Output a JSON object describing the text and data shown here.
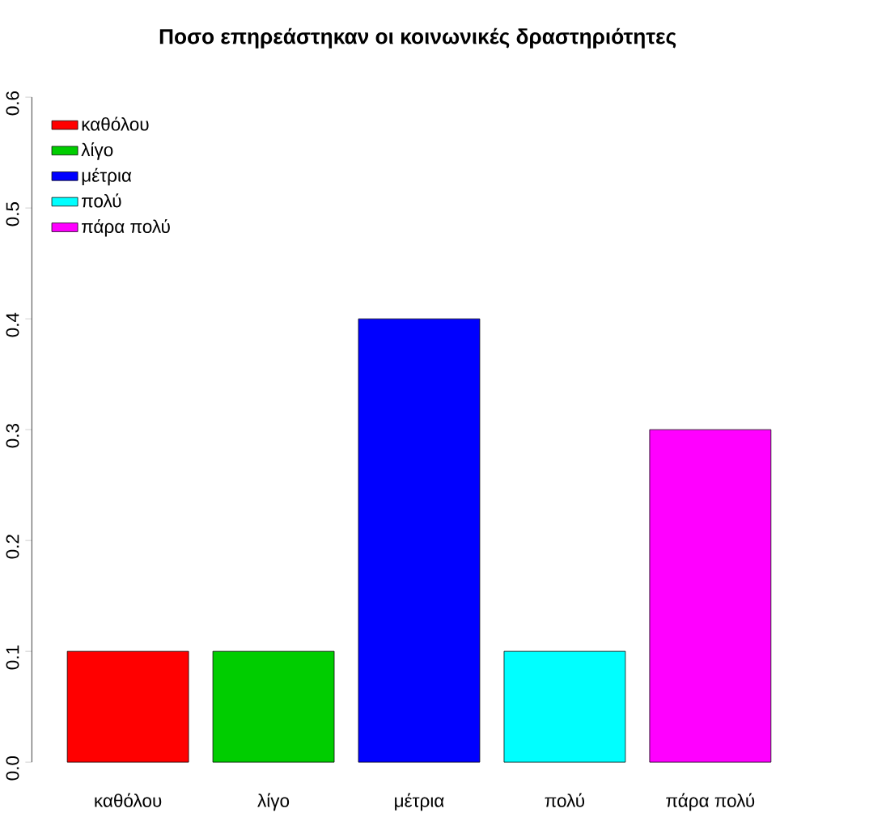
{
  "chart_data": {
    "type": "bar",
    "title": "Ποσο επηρεάστηκαν οι κοινωνικές δραστηριότητες",
    "categories": [
      "καθόλου",
      "λίγο",
      "μέτρια",
      "πολύ",
      "πάρα πολύ"
    ],
    "series": [
      {
        "name": "καθόλου",
        "color": "#ff0000",
        "values": [
          0.1,
          null,
          null,
          null,
          null
        ]
      },
      {
        "name": "λίγο",
        "color": "#00cd00",
        "values": [
          null,
          0.1,
          null,
          null,
          null
        ]
      },
      {
        "name": "μέτρια",
        "color": "#0000ff",
        "values": [
          null,
          null,
          0.4,
          null,
          null
        ]
      },
      {
        "name": "πολύ",
        "color": "#00ffff",
        "values": [
          null,
          null,
          null,
          0.1,
          null
        ]
      },
      {
        "name": "πάρα πολύ",
        "color": "#ff00ff",
        "values": [
          null,
          null,
          null,
          null,
          0.3
        ]
      }
    ],
    "ylim": [
      0,
      0.6
    ],
    "yticks": [
      {
        "value": 0,
        "label": "0.0"
      },
      0.1,
      0.2,
      0.3,
      0.4,
      0.5,
      0.6
    ],
    "legend": "top left"
  }
}
